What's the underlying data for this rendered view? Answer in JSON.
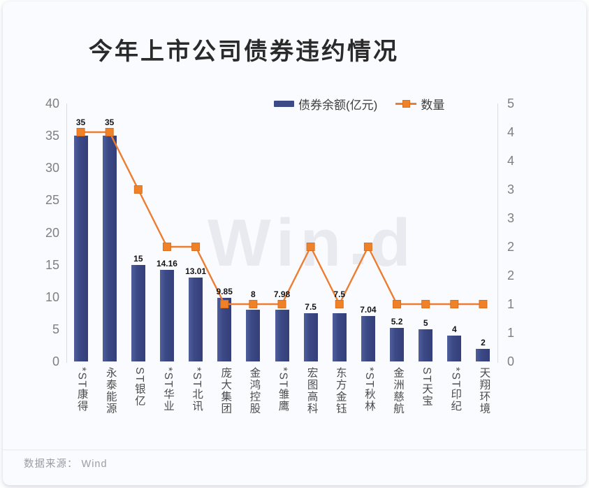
{
  "page": {
    "source_label": "数据来源： Wind"
  },
  "chart_data": {
    "type": "bar",
    "title": "今年上市公司债券违约情况",
    "watermark": {
      "prefix": "Win",
      "suffix": "d"
    },
    "legend_position": "top",
    "grid": false,
    "categories": [
      "*ST康得",
      "永泰能源",
      "ST银亿",
      "*ST华业",
      "*ST北讯",
      "庞大集团",
      "金鸿控股",
      "*ST雏鹰",
      "宏图高科",
      "东方金钰",
      "*ST秋林",
      "金洲慈航",
      "ST天宝",
      "*ST印纪",
      "天翔环境"
    ],
    "series": [
      {
        "name": "债券余额(亿元)",
        "type": "bar",
        "axis": "left",
        "color": "#3c4a86",
        "values": [
          35,
          35,
          15,
          14.16,
          13.01,
          9.85,
          8,
          7.98,
          7.5,
          7.5,
          7.04,
          5.2,
          5,
          4,
          2
        ],
        "data_labels": [
          "35",
          "35",
          "15",
          "14.16",
          "13.01",
          "9.85",
          "8",
          "7.98",
          "7.5",
          "7.5",
          "7.04",
          "5.2",
          "5",
          "4",
          "2"
        ]
      },
      {
        "name": "数量",
        "type": "line",
        "axis": "right",
        "color": "#ed7d31",
        "marker": "square",
        "marker_fill": "#ef8228",
        "marker_border": "#dd6e1e",
        "values": [
          4,
          4,
          3,
          2,
          2,
          1,
          1,
          1,
          2,
          1,
          2,
          1,
          1,
          1,
          1
        ]
      }
    ],
    "left_axis": {
      "min": 0,
      "max": 40,
      "tick_labels": [
        "40",
        "35",
        "30",
        "25",
        "20",
        "15",
        "10",
        "5",
        "0"
      ]
    },
    "right_axis": {
      "min": 0,
      "max": 4.5,
      "tick_labels": [
        "5",
        "4",
        "4",
        "3",
        "3",
        "2",
        "2",
        "1",
        "1",
        "0"
      ]
    },
    "axis_text_color": "#7f7f7f",
    "category_text_color": "#4d4d4d",
    "data_label_color": "#141414",
    "watermark_color": "#e9eaef"
  }
}
